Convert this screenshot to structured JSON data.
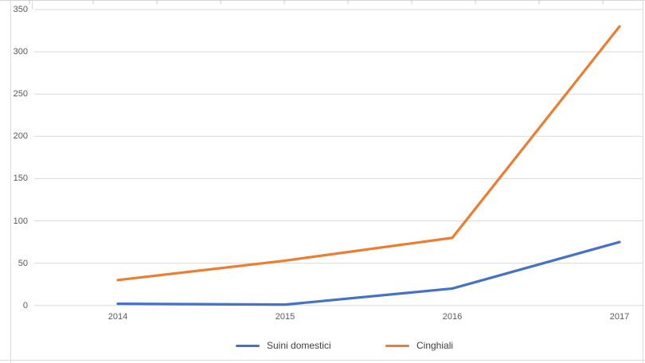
{
  "chart_data": {
    "type": "line",
    "title": "",
    "xlabel": "",
    "ylabel": "",
    "categories": [
      "2014",
      "2015",
      "2016",
      "2017"
    ],
    "series": [
      {
        "name": "Suini domestici",
        "color": "#4472c4",
        "values": [
          2,
          1,
          20,
          75
        ]
      },
      {
        "name": "Cinghiali",
        "color": "#ed7d31",
        "values": [
          30,
          53,
          80,
          330
        ]
      }
    ],
    "ylim": [
      0,
      350
    ],
    "ytick_step": 50,
    "yticks": [
      "350",
      "300",
      "250",
      "200",
      "150",
      "100",
      "50",
      "0"
    ],
    "grid": true,
    "legend_position": "bottom",
    "colors": {
      "gridline": "#d9d9d9",
      "top_tick": "#c8c8c8",
      "frame": "#dcdcdc",
      "axis_text": "#595959",
      "legend_text": "#404040",
      "background": "#ffffff"
    }
  }
}
